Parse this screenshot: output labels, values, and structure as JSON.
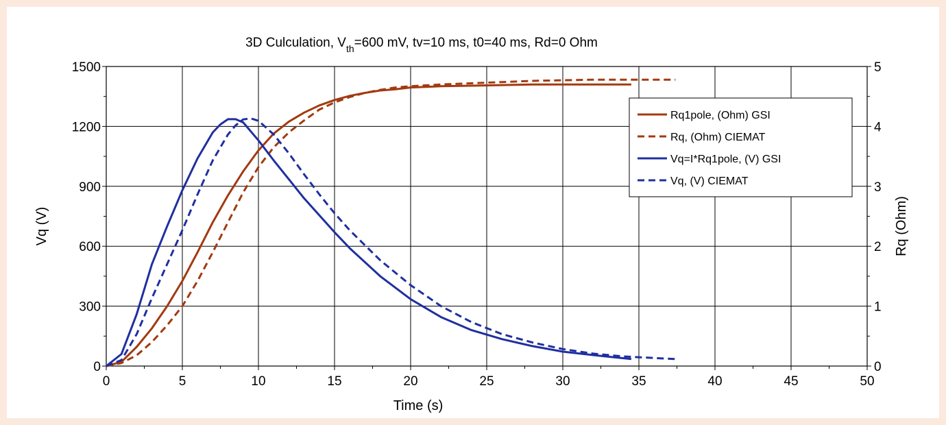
{
  "chart_data": {
    "type": "line",
    "title": {
      "prefix": "3D Culculation, V",
      "subscript": "th",
      "suffix": "=600 mV, tv=10 ms, t0=40 ms, Rd=0 Ohm"
    },
    "xlabel": "Time (s)",
    "ylabel_left": "Vq (V)",
    "ylabel_right": "Rq (Ohm)",
    "xlim": [
      0,
      50
    ],
    "ylim_left": [
      0,
      1500
    ],
    "ylim_right": [
      0,
      5
    ],
    "x_ticks": [
      "0",
      "5",
      "10",
      "15",
      "20",
      "25",
      "30",
      "35",
      "40",
      "45",
      "50"
    ],
    "y_left_ticks": [
      "0",
      "300",
      "600",
      "900",
      "1200",
      "1500"
    ],
    "y_right_ticks": [
      "0",
      "1",
      "2",
      "3",
      "4",
      "5"
    ],
    "grid": true,
    "legend_position": "top-right",
    "colors": {
      "rq": "#a23a10",
      "vq": "#1f2fa0"
    },
    "series": [
      {
        "name": "Rq1pole, (Ohm) GSI",
        "axis": "right",
        "color": "#a23a10",
        "dash": "solid",
        "x": [
          0,
          1,
          2,
          3,
          4,
          5,
          6,
          7,
          8,
          9,
          10,
          11,
          12,
          13,
          14,
          15,
          16,
          17,
          18,
          19,
          20,
          22,
          24,
          26,
          28,
          30,
          32,
          34.5
        ],
        "y": [
          0,
          0.07,
          0.32,
          0.63,
          1.0,
          1.42,
          1.9,
          2.4,
          2.85,
          3.25,
          3.6,
          3.88,
          4.08,
          4.23,
          4.35,
          4.44,
          4.51,
          4.56,
          4.6,
          4.62,
          4.65,
          4.67,
          4.68,
          4.69,
          4.7,
          4.7,
          4.7,
          4.7
        ]
      },
      {
        "name": "Rq, (Ohm) CIEMAT",
        "axis": "right",
        "color": "#a23a10",
        "dash": "dashed",
        "x": [
          0,
          1,
          2,
          3,
          4,
          5,
          6,
          7,
          8,
          9,
          10,
          11,
          12,
          13,
          14,
          15,
          16,
          17,
          18,
          19,
          20,
          22,
          24,
          26,
          28,
          30,
          32,
          34,
          37.4
        ],
        "y": [
          0,
          0.05,
          0.18,
          0.4,
          0.68,
          1.0,
          1.42,
          1.9,
          2.4,
          2.9,
          3.32,
          3.65,
          3.9,
          4.1,
          4.28,
          4.4,
          4.49,
          4.56,
          4.61,
          4.65,
          4.67,
          4.7,
          4.72,
          4.74,
          4.76,
          4.77,
          4.78,
          4.78,
          4.78
        ]
      },
      {
        "name": "Vq=I*Rq1pole, (V) GSI",
        "axis": "left",
        "color": "#1f2fa0",
        "dash": "solid",
        "x": [
          0,
          1,
          2,
          3,
          4,
          5,
          6,
          7,
          7.5,
          8,
          8.5,
          9,
          10,
          11,
          12,
          13,
          14,
          15,
          16,
          18,
          20,
          22,
          24,
          26,
          28,
          30,
          32,
          34.5
        ],
        "y": [
          0,
          60,
          260,
          510,
          700,
          880,
          1040,
          1170,
          1210,
          1236,
          1236,
          1220,
          1130,
          1030,
          935,
          840,
          755,
          670,
          590,
          450,
          335,
          245,
          180,
          135,
          100,
          72,
          55,
          35
        ]
      },
      {
        "name": "Vq, (V) CIEMAT",
        "axis": "left",
        "color": "#1f2fa0",
        "dash": "dashed",
        "x": [
          0,
          1,
          2,
          3,
          4,
          5,
          6,
          7,
          8,
          8.5,
          9,
          9.5,
          10,
          11,
          12,
          13,
          14,
          15,
          16,
          18,
          20,
          22,
          24,
          26,
          28,
          30,
          32,
          34,
          37.4
        ],
        "y": [
          0,
          30,
          160,
          340,
          510,
          680,
          860,
          1030,
          1160,
          1205,
          1235,
          1240,
          1228,
          1160,
          1065,
          960,
          860,
          765,
          680,
          530,
          405,
          300,
          220,
          160,
          118,
          85,
          62,
          48,
          35
        ]
      }
    ]
  }
}
